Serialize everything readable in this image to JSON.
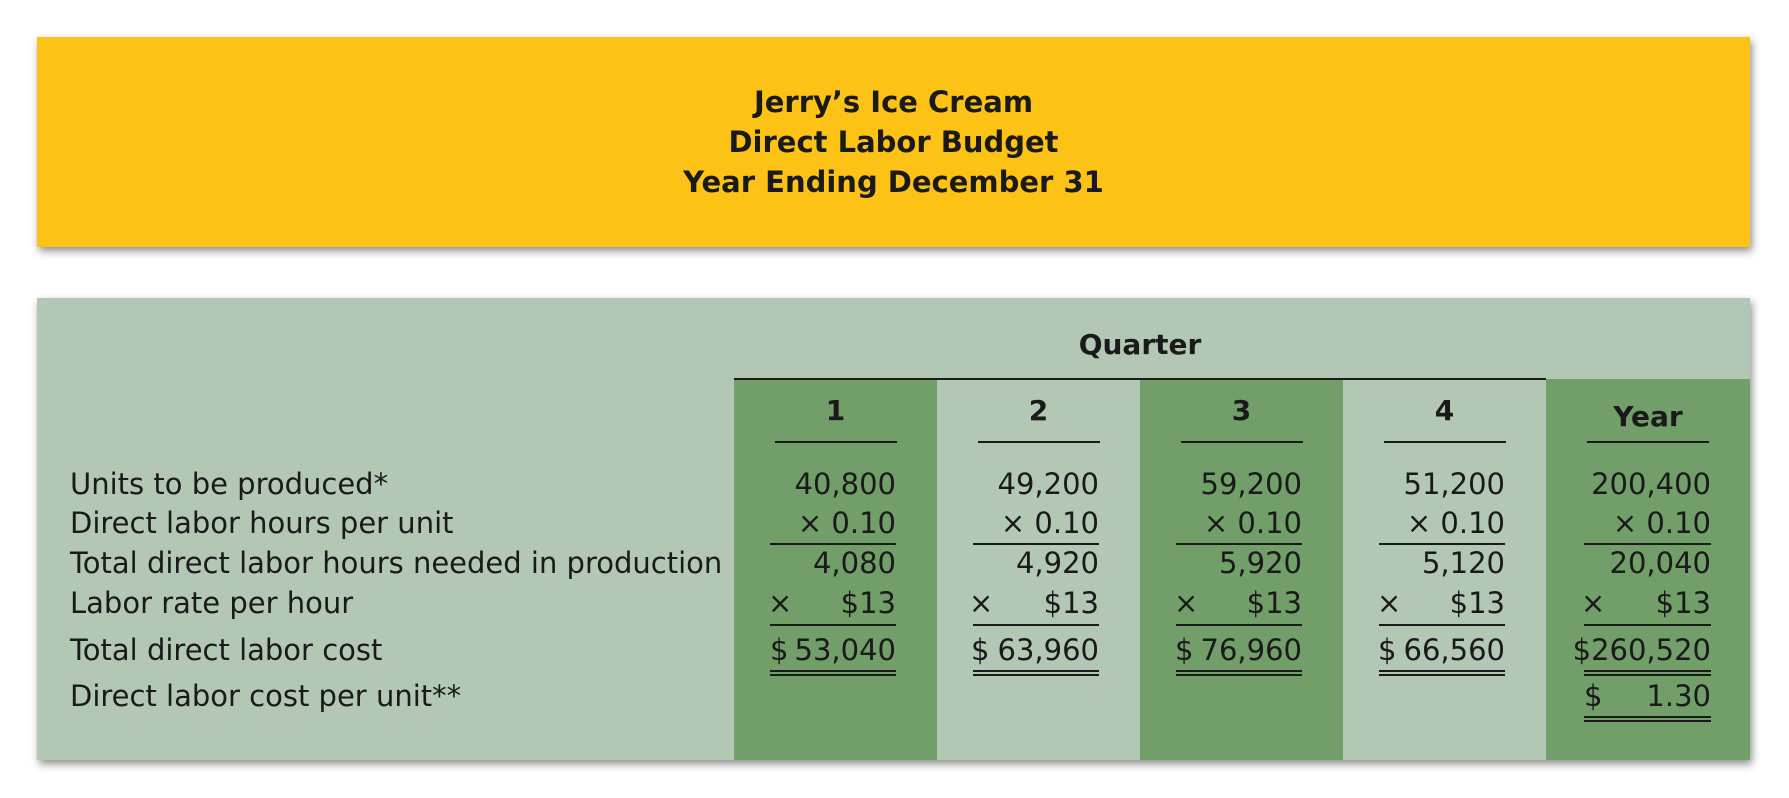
{
  "header": {
    "company": "Jerry’s Ice Cream",
    "title": "Direct Labor Budget",
    "period": "Year Ending December 31"
  },
  "table": {
    "group_label": "Quarter",
    "columns": [
      "1",
      "2",
      "3",
      "4",
      "Year"
    ],
    "row_labels": {
      "units": "Units to be produced*",
      "hours_per_unit": "Direct labor hours per unit",
      "total_hours": "Total direct labor hours needed in production",
      "rate": "Labor rate per hour",
      "total_cost": "Total direct labor cost",
      "cost_per_unit": "Direct labor cost per unit**"
    },
    "units": [
      "40,800",
      "49,200",
      "59,200",
      "51,200",
      "200,400"
    ],
    "hours_per_unit": [
      "× 0.10",
      "× 0.10",
      "× 0.10",
      "× 0.10",
      "× 0.10"
    ],
    "total_hours": [
      "4,080",
      "4,920",
      "5,920",
      "5,120",
      "20,040"
    ],
    "rate_symbol": "×",
    "rate": [
      "$13",
      "$13",
      "$13",
      "$13",
      "$13"
    ],
    "total_cost_dollar": [
      "$",
      "$",
      "$",
      "$",
      ""
    ],
    "total_cost": [
      "53,040",
      "63,960",
      "76,960",
      "66,560",
      "$260,520"
    ],
    "cost_per_unit_dollar": "$",
    "cost_per_unit": "1.30"
  },
  "colors": {
    "banner": "#fcc216",
    "panel": "#b2c8b4",
    "dark_column": "#729e6a"
  }
}
